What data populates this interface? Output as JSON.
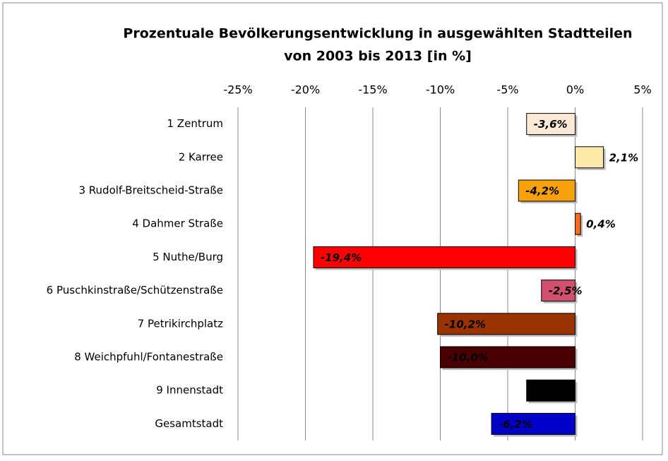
{
  "chart_data": {
    "type": "bar",
    "orientation": "horizontal",
    "title": [
      "Prozentuale Bevölkerungsentwicklung in ausgewählten Stadtteilen",
      "von 2003 bis 2013 [in %]"
    ],
    "categories": [
      "1 Zentrum",
      "2 Karree",
      "3 Rudolf-Breitscheid-Straße",
      "4 Dahmer Straße",
      "5 Nuthe/Burg",
      "6 Puschkinstraße/Schützenstraße",
      "7 Petrikirchplatz",
      "8 Weichpfuhl/Fontanestraße",
      "9 Innenstadt",
      "Gesamtstadt"
    ],
    "values": [
      -3.6,
      2.1,
      -4.2,
      0.4,
      -19.4,
      -2.5,
      -10.2,
      -10.0,
      -3.6,
      -6.2
    ],
    "value_labels": [
      "-3,6%",
      "2,1%",
      "-4,2%",
      "0,4%",
      "-19,4%",
      "-2,5%",
      "-10,2%",
      "-10,0%",
      "-3,6%",
      "-6,2%"
    ],
    "colors": [
      "#fde9d5",
      "#fde9a9",
      "#f7a20c",
      "#ff6a1a",
      "#ff0000",
      "#d0506e",
      "#993300",
      "#4a0000",
      "#000000",
      "#0000c8"
    ],
    "xlim": [
      -25,
      5
    ],
    "xticks": [
      {
        "value": -25,
        "label": "-25%"
      },
      {
        "value": -20,
        "label": "-20%"
      },
      {
        "value": -15,
        "label": "-15%"
      },
      {
        "value": -10,
        "label": "-10%"
      },
      {
        "value": -5,
        "label": "-5%"
      },
      {
        "value": 0,
        "label": "0%"
      },
      {
        "value": 5,
        "label": "5%"
      }
    ],
    "grid": true,
    "axis_position": "top"
  }
}
